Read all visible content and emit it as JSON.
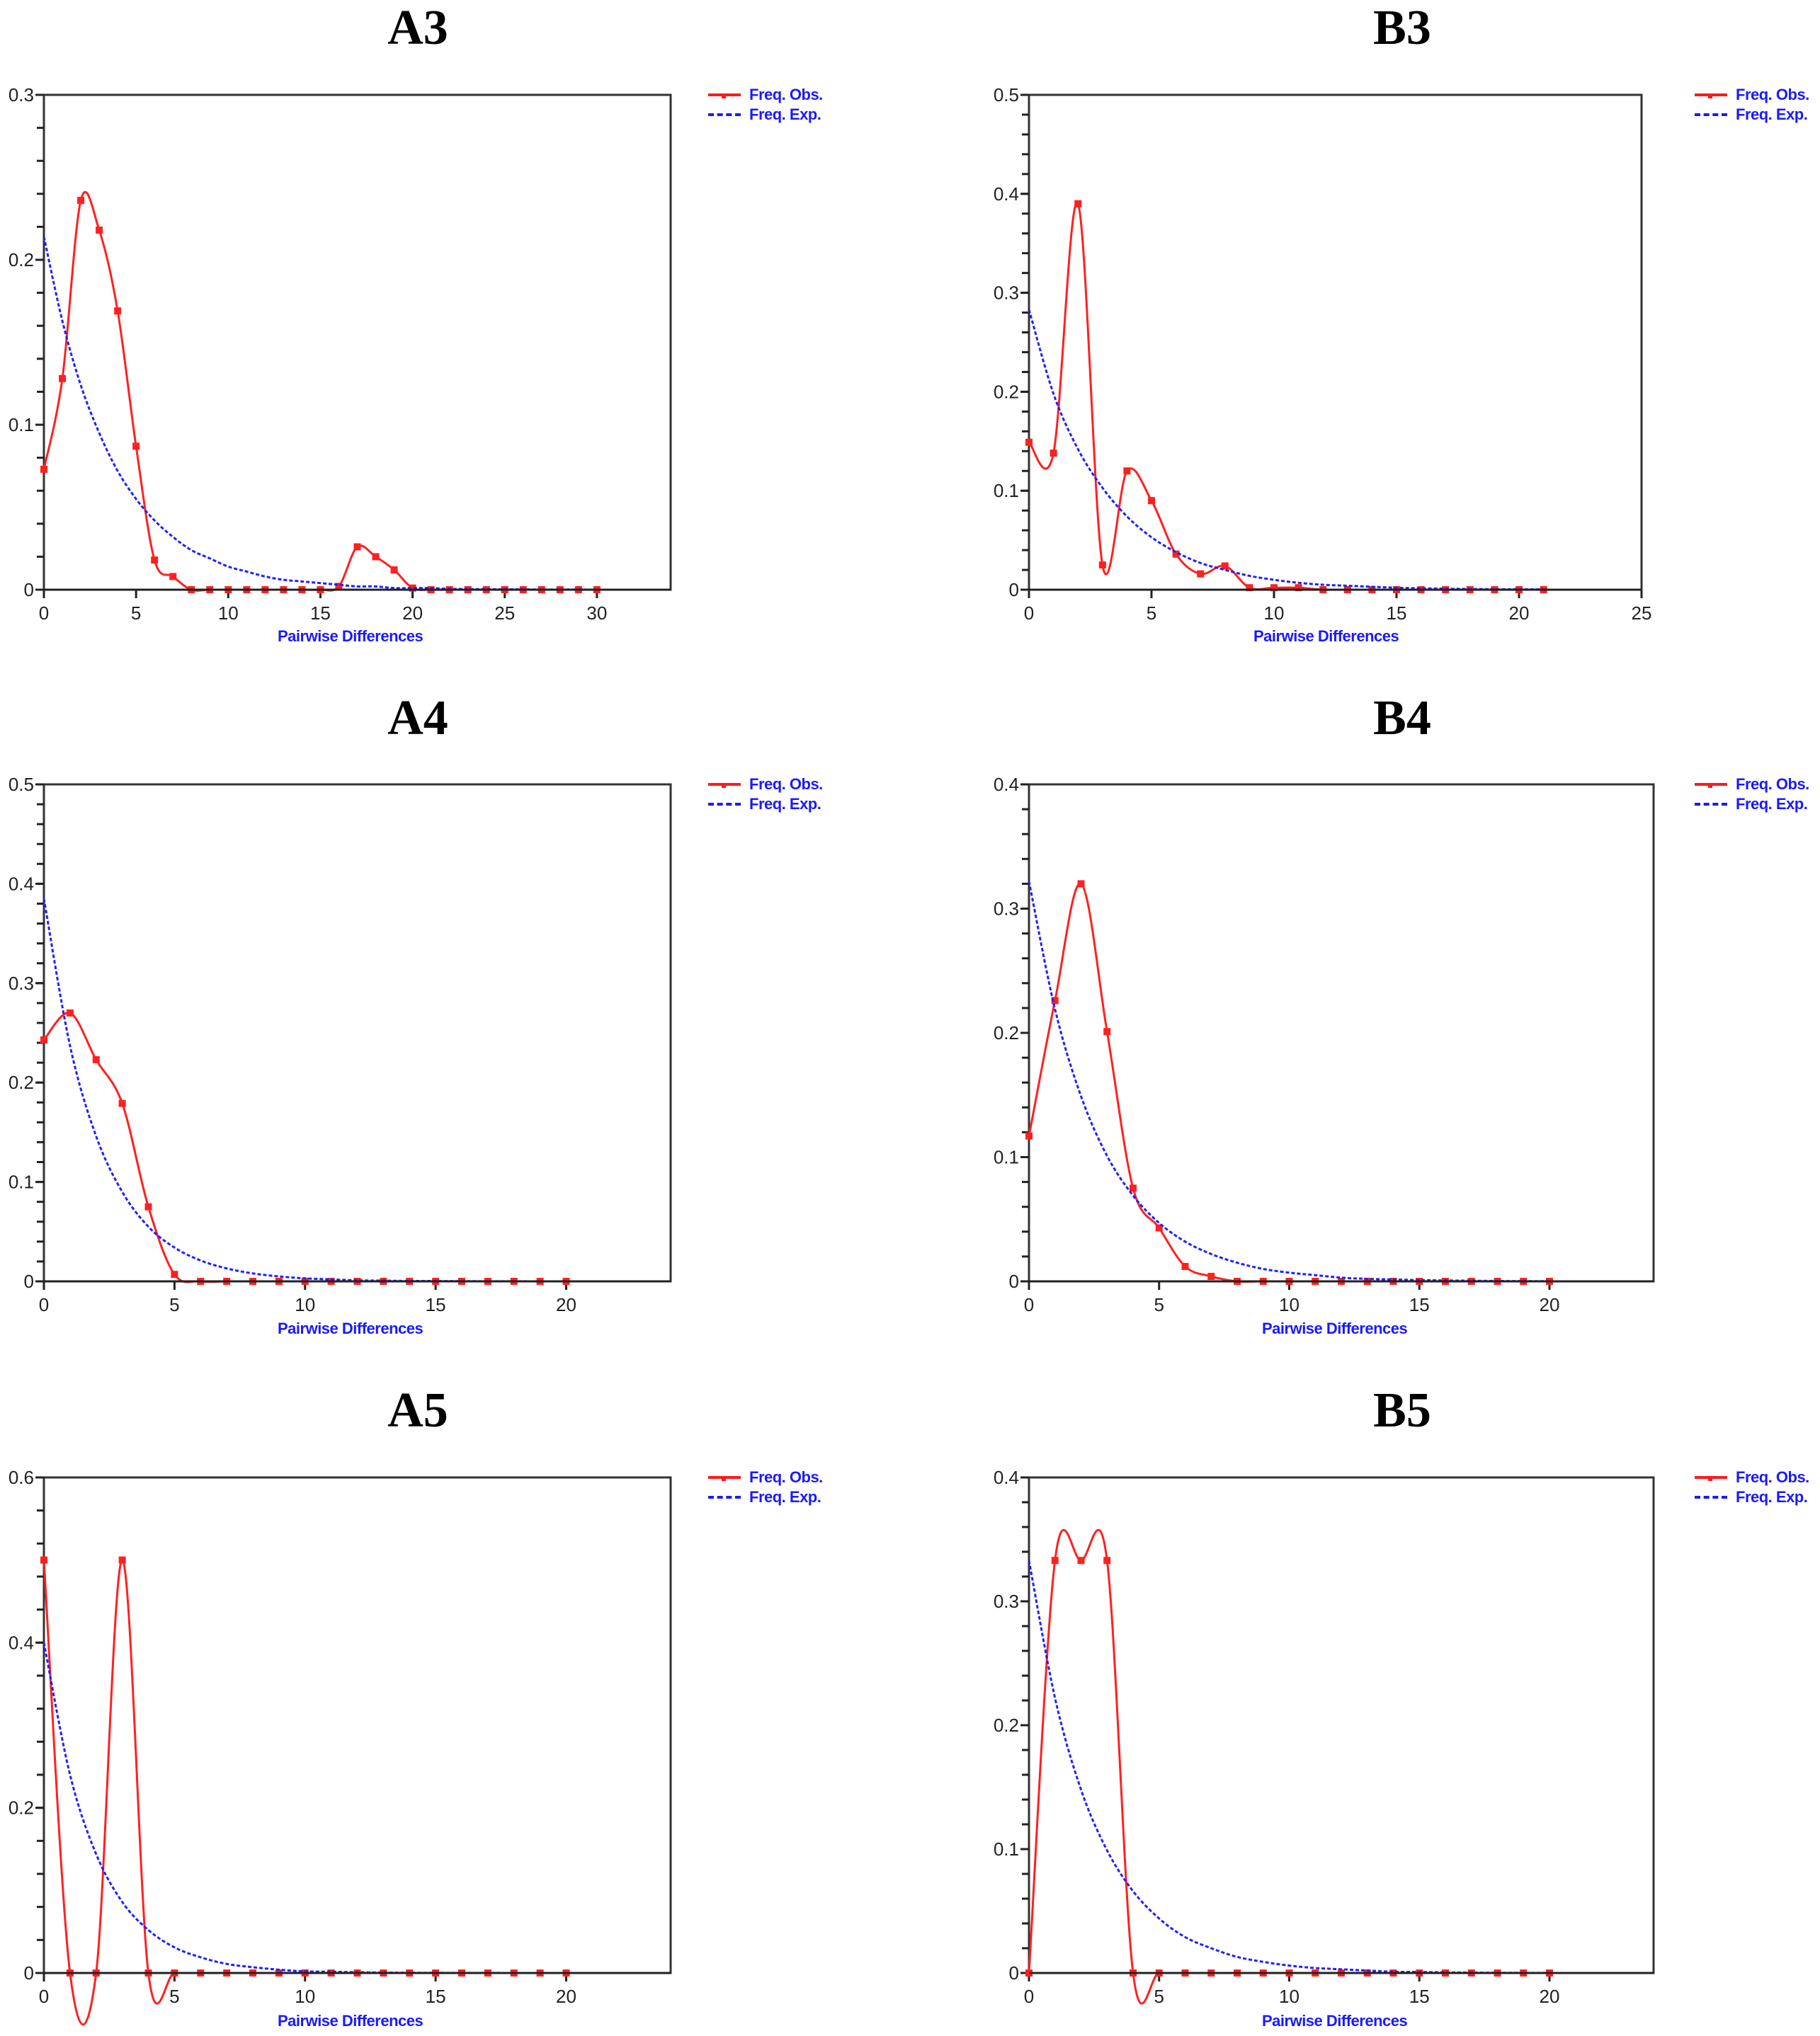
{
  "figure": {
    "legend": {
      "observed_label": "Freq. Obs.",
      "expected_label": "Freq. Exp."
    },
    "colors": {
      "observed": "#ff2020",
      "expected": "#2020ff",
      "axis": "#000000",
      "title": "#000000",
      "xlabel": "#1a1aff"
    }
  },
  "panels": [
    {
      "id": "A3",
      "title": "A3",
      "xlabel": "Pairwise Differences"
    },
    {
      "id": "B3",
      "title": "B3",
      "xlabel": "Pairwise Differences"
    },
    {
      "id": "A4",
      "title": "A4",
      "xlabel": "Pairwise Differences"
    },
    {
      "id": "B4",
      "title": "B4",
      "xlabel": "Pairwise Differences"
    },
    {
      "id": "A5",
      "title": "A5",
      "xlabel": "Pairwise Differences"
    },
    {
      "id": "B5",
      "title": "B5",
      "xlabel": "Pairwise Differences"
    }
  ],
  "chart_data": [
    {
      "title": "A3",
      "type": "line",
      "xlabel": "Pairwise Differences",
      "ylabel": "",
      "xlim": [
        0,
        34
      ],
      "ylim": [
        0,
        0.3
      ],
      "xticks": [
        0,
        5,
        10,
        15,
        20,
        25,
        30
      ],
      "yticks": [
        0,
        0.1,
        0.2,
        0.3
      ],
      "yminor": 0.02,
      "legend": [
        "Freq. Obs.",
        "Freq. Exp."
      ],
      "legend_position": "outside-right-top",
      "series": [
        {
          "name": "Freq. Obs.",
          "style": "solid-smooth-markers",
          "x": [
            0,
            1,
            2,
            3,
            4,
            5,
            6,
            7,
            8,
            9,
            10,
            11,
            12,
            13,
            14,
            15,
            16,
            17,
            18,
            19,
            20,
            21,
            22,
            23,
            24,
            25,
            26,
            27,
            28,
            29,
            30
          ],
          "values": [
            0.073,
            0.128,
            0.236,
            0.218,
            0.169,
            0.087,
            0.018,
            0.008,
            0,
            0,
            0,
            0,
            0,
            0,
            0,
            0,
            0.002,
            0.026,
            0.02,
            0.012,
            0.001,
            0,
            0,
            0,
            0,
            0,
            0,
            0,
            0,
            0,
            0
          ]
        },
        {
          "name": "Freq. Exp.",
          "style": "dashed",
          "x": [
            0,
            1,
            2,
            3,
            4,
            5,
            6,
            7,
            8,
            9,
            10,
            11,
            12,
            13,
            14,
            15,
            16,
            17,
            18,
            19,
            20,
            21,
            22,
            23,
            24,
            25,
            26,
            27,
            28,
            29,
            30
          ],
          "values": [
            0.214,
            0.163,
            0.124,
            0.095,
            0.072,
            0.055,
            0.042,
            0.032,
            0.024,
            0.019,
            0.014,
            0.011,
            0.008,
            0.006,
            0.005,
            0.004,
            0.003,
            0.002,
            0.002,
            0.001,
            0.001,
            0.001,
            0.0005,
            0.0004,
            0.0003,
            0.0002,
            0.0002,
            0.0001,
            0.0001,
            0.0001,
            0
          ]
        }
      ]
    },
    {
      "title": "B3",
      "type": "line",
      "xlabel": "Pairwise Differences",
      "ylabel": "",
      "xlim": [
        0,
        25
      ],
      "ylim": [
        0,
        0.5
      ],
      "xticks": [
        0,
        5,
        10,
        15,
        20,
        25
      ],
      "yticks": [
        0,
        0.1,
        0.2,
        0.3,
        0.4,
        0.5
      ],
      "yminor": 0.02,
      "legend": [
        "Freq. Obs.",
        "Freq. Exp."
      ],
      "legend_position": "outside-right-top",
      "series": [
        {
          "name": "Freq. Obs.",
          "style": "solid-smooth-markers",
          "x": [
            0,
            1,
            2,
            3,
            4,
            5,
            6,
            7,
            8,
            9,
            10,
            11,
            12,
            13,
            14,
            15,
            16,
            17,
            18,
            19,
            20,
            21
          ],
          "values": [
            0.149,
            0.138,
            0.39,
            0.025,
            0.12,
            0.09,
            0.036,
            0.016,
            0.024,
            0.002,
            0.002,
            0.002,
            0,
            0,
            0,
            0,
            0,
            0,
            0,
            0,
            0,
            0
          ]
        },
        {
          "name": "Freq. Exp.",
          "style": "dashed",
          "x": [
            0,
            1,
            2,
            3,
            4,
            5,
            6,
            7,
            8,
            9,
            10,
            11,
            12,
            13,
            14,
            15,
            16,
            17,
            18,
            19,
            20,
            21
          ],
          "values": [
            0.283,
            0.198,
            0.142,
            0.103,
            0.074,
            0.053,
            0.038,
            0.027,
            0.02,
            0.014,
            0.01,
            0.007,
            0.005,
            0.004,
            0.003,
            0.002,
            0.0014,
            0.001,
            0.0007,
            0.0005,
            0.0004,
            0.0003
          ]
        }
      ]
    },
    {
      "title": "A4",
      "type": "line",
      "xlabel": "Pairwise Differences",
      "ylabel": "",
      "xlim": [
        0,
        24
      ],
      "ylim": [
        0,
        0.5
      ],
      "xticks": [
        0,
        5,
        10,
        15,
        20
      ],
      "yticks": [
        0,
        0.1,
        0.2,
        0.3,
        0.4,
        0.5
      ],
      "yminor": 0.02,
      "legend": [
        "Freq. Obs.",
        "Freq. Exp."
      ],
      "legend_position": "outside-right-top",
      "series": [
        {
          "name": "Freq. Obs.",
          "style": "solid-smooth-markers",
          "x": [
            0,
            1,
            2,
            3,
            4,
            5,
            6,
            7,
            8,
            9,
            10,
            11,
            12,
            13,
            14,
            15,
            16,
            17,
            18,
            19,
            20
          ],
          "values": [
            0.243,
            0.27,
            0.223,
            0.179,
            0.075,
            0.007,
            0,
            0,
            0,
            0,
            0,
            0,
            0,
            0,
            0,
            0,
            0,
            0,
            0,
            0,
            0
          ]
        },
        {
          "name": "Freq. Exp.",
          "style": "dashed",
          "x": [
            0,
            1,
            2,
            3,
            4,
            5,
            6,
            7,
            8,
            9,
            10,
            11,
            12,
            13,
            14,
            15,
            16,
            17,
            18,
            19,
            20
          ],
          "values": [
            0.385,
            0.237,
            0.146,
            0.09,
            0.055,
            0.034,
            0.021,
            0.013,
            0.008,
            0.005,
            0.003,
            0.002,
            0.001,
            0.0007,
            0.0004,
            0.0003,
            0.0002,
            0.0001,
            0.0001,
            0,
            0
          ]
        }
      ]
    },
    {
      "title": "B4",
      "type": "line",
      "xlabel": "Pairwise Differences",
      "ylabel": "",
      "xlim": [
        0,
        24
      ],
      "ylim": [
        0,
        0.4
      ],
      "xticks": [
        0,
        5,
        10,
        15,
        20
      ],
      "yticks": [
        0,
        0.1,
        0.2,
        0.3,
        0.4
      ],
      "yminor": 0.02,
      "legend": [
        "Freq. Obs.",
        "Freq. Exp."
      ],
      "legend_position": "outside-right-top",
      "series": [
        {
          "name": "Freq. Obs.",
          "style": "solid-smooth-markers",
          "x": [
            0,
            1,
            2,
            3,
            4,
            5,
            6,
            7,
            8,
            9,
            10,
            11,
            12,
            13,
            14,
            15,
            16,
            17,
            18,
            19,
            20
          ],
          "values": [
            0.117,
            0.226,
            0.32,
            0.201,
            0.075,
            0.043,
            0.012,
            0.004,
            0,
            0,
            0,
            0,
            0,
            0,
            0,
            0,
            0,
            0,
            0,
            0,
            0
          ]
        },
        {
          "name": "Freq. Exp.",
          "style": "dashed",
          "x": [
            0,
            1,
            2,
            3,
            4,
            5,
            6,
            7,
            8,
            9,
            10,
            11,
            12,
            13,
            14,
            15,
            16,
            17,
            18,
            19,
            20
          ],
          "values": [
            0.322,
            0.219,
            0.149,
            0.101,
            0.069,
            0.047,
            0.032,
            0.022,
            0.015,
            0.01,
            0.007,
            0.005,
            0.003,
            0.002,
            0.0015,
            0.001,
            0.0007,
            0.0005,
            0.0003,
            0.0002,
            0.0001
          ]
        }
      ]
    },
    {
      "title": "A5",
      "type": "line",
      "xlabel": "Pairwise Differences",
      "ylabel": "",
      "xlim": [
        0,
        24
      ],
      "ylim": [
        0,
        0.6
      ],
      "xticks": [
        0,
        5,
        10,
        15,
        20
      ],
      "yticks": [
        0,
        0.2,
        0.4,
        0.6
      ],
      "yminor": 0.04,
      "legend": [
        "Freq. Obs.",
        "Freq. Exp."
      ],
      "legend_position": "outside-right-top",
      "series": [
        {
          "name": "Freq. Obs.",
          "style": "solid-smooth-markers",
          "x": [
            0,
            1,
            2,
            3,
            4,
            5,
            6,
            7,
            8,
            9,
            10,
            11,
            12,
            13,
            14,
            15,
            16,
            17,
            18,
            19,
            20
          ],
          "values": [
            0.5,
            0,
            0,
            0.5,
            0,
            0,
            0,
            0,
            0,
            0,
            0,
            0,
            0,
            0,
            0,
            0,
            0,
            0,
            0,
            0,
            0
          ]
        },
        {
          "name": "Freq. Exp.",
          "style": "dashed",
          "x": [
            0,
            1,
            2,
            3,
            4,
            5,
            6,
            7,
            8,
            9,
            10,
            11,
            12,
            13,
            14,
            15,
            16,
            17,
            18,
            19,
            20
          ],
          "values": [
            0.4,
            0.24,
            0.144,
            0.086,
            0.052,
            0.031,
            0.019,
            0.011,
            0.007,
            0.004,
            0.002,
            0.0015,
            0.0009,
            0.0005,
            0.0003,
            0.0002,
            0.0001,
            0.0001,
            0,
            0,
            0
          ]
        }
      ]
    },
    {
      "title": "B5",
      "type": "line",
      "xlabel": "Pairwise Differences",
      "ylabel": "",
      "xlim": [
        0,
        24
      ],
      "ylim": [
        0,
        0.4
      ],
      "xticks": [
        0,
        5,
        10,
        15,
        20
      ],
      "yticks": [
        0,
        0.1,
        0.2,
        0.3,
        0.4
      ],
      "yminor": 0.02,
      "legend": [
        "Freq. Obs.",
        "Freq. Exp."
      ],
      "legend_position": "outside-right-top",
      "series": [
        {
          "name": "Freq. Obs.",
          "style": "solid-smooth-markers",
          "x": [
            0,
            1,
            2,
            3,
            4,
            5,
            6,
            7,
            8,
            9,
            10,
            11,
            12,
            13,
            14,
            15,
            16,
            17,
            18,
            19,
            20
          ],
          "values": [
            0,
            0.333,
            0.333,
            0.333,
            0,
            0,
            0,
            0,
            0,
            0,
            0,
            0,
            0,
            0,
            0,
            0,
            0,
            0,
            0,
            0,
            0
          ]
        },
        {
          "name": "Freq. Exp.",
          "style": "dashed",
          "x": [
            0,
            1,
            2,
            3,
            4,
            5,
            6,
            7,
            8,
            9,
            10,
            11,
            12,
            13,
            14,
            15,
            16,
            17,
            18,
            19,
            20
          ],
          "values": [
            0.333,
            0.222,
            0.148,
            0.099,
            0.066,
            0.044,
            0.029,
            0.02,
            0.013,
            0.009,
            0.006,
            0.004,
            0.003,
            0.002,
            0.001,
            0.0008,
            0.0005,
            0.0003,
            0.0002,
            0.0001,
            0.0001
          ]
        }
      ]
    }
  ]
}
